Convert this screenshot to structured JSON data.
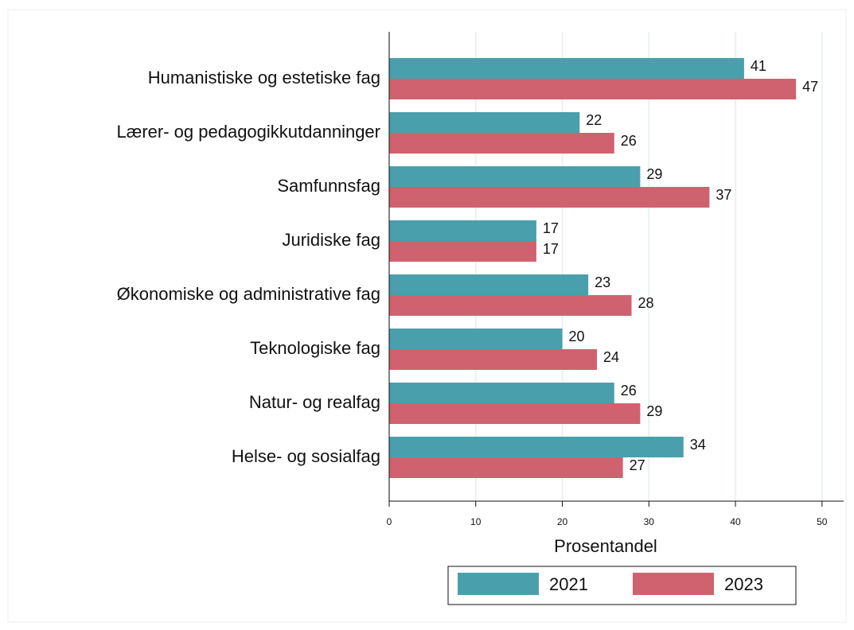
{
  "chart_data": {
    "type": "hbar",
    "categories": [
      "Humanistiske og estetiske fag",
      "Lærer- og pedagogikkutdanninger",
      "Samfunnsfag",
      "Juridiske fag",
      "Økonomiske og administrative fag",
      "Teknologiske fag",
      "Natur- og realfag",
      "Helse- og sosialfag"
    ],
    "series": [
      {
        "name": "2021",
        "color": "#4a9fad",
        "values": [
          41,
          22,
          29,
          17,
          23,
          20,
          26,
          34
        ]
      },
      {
        "name": "2023",
        "color": "#d0626f",
        "values": [
          47,
          26,
          37,
          17,
          28,
          24,
          29,
          27
        ]
      }
    ],
    "x_label": "Prosentandel",
    "xlim": [
      0,
      52.5
    ],
    "xticks": [
      0,
      10,
      20,
      30,
      40,
      50
    ],
    "grid": true,
    "legend": "bottom"
  }
}
